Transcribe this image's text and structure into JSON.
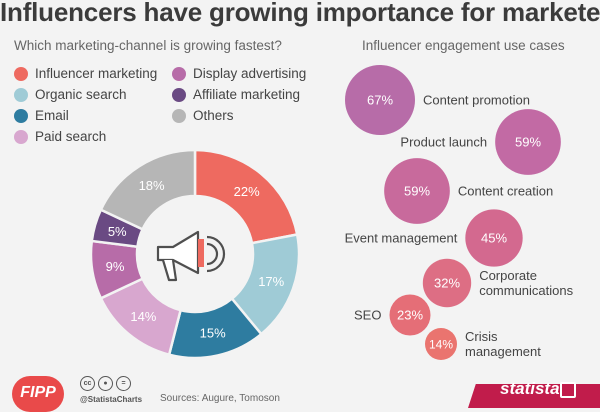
{
  "header": {
    "title": "Influencers have growing importance for marketers",
    "subtitle_left": "Which marketing-channel is growing fastest?",
    "subtitle_right": "Influencer engagement use cases"
  },
  "chart_data": [
    {
      "type": "pie",
      "title": "Which marketing-channel is growing fastest?",
      "unit": "%",
      "slices": [
        {
          "label": "Influencer marketing",
          "value": 22,
          "color": "#ee6a60"
        },
        {
          "label": "Organic search",
          "value": 17,
          "color": "#9fcbd6"
        },
        {
          "label": "Email",
          "value": 15,
          "color": "#2e7ca0"
        },
        {
          "label": "Paid search",
          "value": 14,
          "color": "#d8a7cf"
        },
        {
          "label": "Display advertising",
          "value": 9,
          "color": "#b76ca8"
        },
        {
          "label": "Affiliate marketing",
          "value": 5,
          "color": "#6a4a83"
        },
        {
          "label": "Others",
          "value": 18,
          "color": "#b6b6b6"
        }
      ],
      "data_labels": [
        "22%",
        "17%",
        "15%",
        "14%",
        "9%",
        "5%",
        "18%"
      ],
      "legend_placement": "top",
      "center_icon": "megaphone-icon"
    },
    {
      "type": "scatter",
      "title": "Influencer engagement use cases",
      "unit": "%",
      "points": [
        {
          "label": "Content promotion",
          "value": 67,
          "value_label": "67%"
        },
        {
          "label": "Product launch",
          "value": 59,
          "value_label": "59%"
        },
        {
          "label": "Content creation",
          "value": 59,
          "value_label": "59%"
        },
        {
          "label": "Event management",
          "value": 45,
          "value_label": "45%"
        },
        {
          "label": "Corporate communications",
          "value": 32,
          "value_label": "32%"
        },
        {
          "label": "SEO",
          "value": 23,
          "value_label": "23%"
        },
        {
          "label": "Crisis management",
          "value": 14,
          "value_label": "14%"
        }
      ],
      "bubble_colors": [
        "#b76ca8",
        "#c26aa4",
        "#c86a9c",
        "#d3698f",
        "#dd6e84",
        "#e56e77",
        "#ea746f"
      ]
    }
  ],
  "footer": {
    "logo_text": "FIPP",
    "handle": "@StatistaCharts",
    "sources": "Sources: Augure, Tomoson",
    "brand": "statista",
    "cc_icons": [
      "cc",
      "by",
      "="
    ]
  },
  "colors": {
    "background": "#f3f3f3",
    "fipp_red": "#e94a4a",
    "statista_red": "#c11c4b"
  }
}
